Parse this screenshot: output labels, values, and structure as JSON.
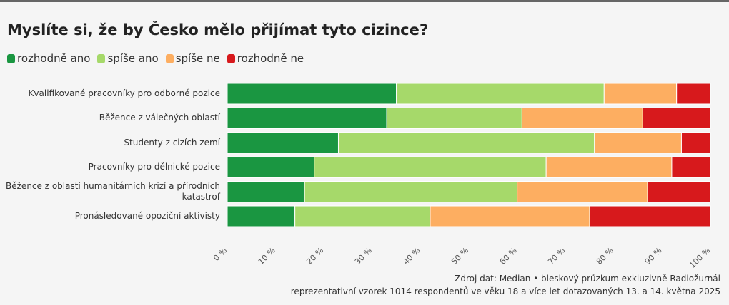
{
  "chart_data": {
    "type": "stacked-bar-horizontal",
    "title": "Myslíte si, že by Česko mělo přijímat tyto cizince?",
    "categories": [
      "Kvalifikované pracovníky pro odborné pozice",
      "Běžence z válečných oblastí",
      "Studenty z cizích zemí",
      "Pracovníky pro dělnické pozice",
      "Běžence z oblastí humanitárních krizí a přírodních katastrof",
      "Pronásledované opoziční aktivisty"
    ],
    "series": [
      {
        "name": "rozhodně ano",
        "color": "#1a9641",
        "values": [
          35,
          33,
          23,
          18,
          16,
          14
        ]
      },
      {
        "name": "spíše ano",
        "color": "#a6d96a",
        "values": [
          43,
          28,
          53,
          48,
          44,
          28
        ]
      },
      {
        "name": "spíše ne",
        "color": "#fdae61",
        "values": [
          15,
          25,
          18,
          26,
          27,
          33
        ]
      },
      {
        "name": "rozhodně ne",
        "color": "#d7191c",
        "values": [
          7,
          14,
          6,
          8,
          13,
          25
        ]
      }
    ],
    "xlim": [
      0,
      100
    ],
    "xticks": [
      {
        "value": 0,
        "label": "0 %"
      },
      {
        "value": 10,
        "label": "10 %"
      },
      {
        "value": 20,
        "label": "20 %"
      },
      {
        "value": 30,
        "label": "30 %"
      },
      {
        "value": 40,
        "label": "40 %"
      },
      {
        "value": 50,
        "label": "50 %"
      },
      {
        "value": 60,
        "label": "60 %"
      },
      {
        "value": 70,
        "label": "70 %"
      },
      {
        "value": 80,
        "label": "80 %"
      },
      {
        "value": 90,
        "label": "90 %"
      },
      {
        "value": 100,
        "label": "100 %"
      }
    ],
    "source": [
      "Zdroj dat: Median • bleskový průzkum exkluzivně Radiožurnál",
      "reprezentativní vzorek 1014 respondentů ve věku 18 a více let dotazovaných 13. a 14. května 2025"
    ]
  }
}
